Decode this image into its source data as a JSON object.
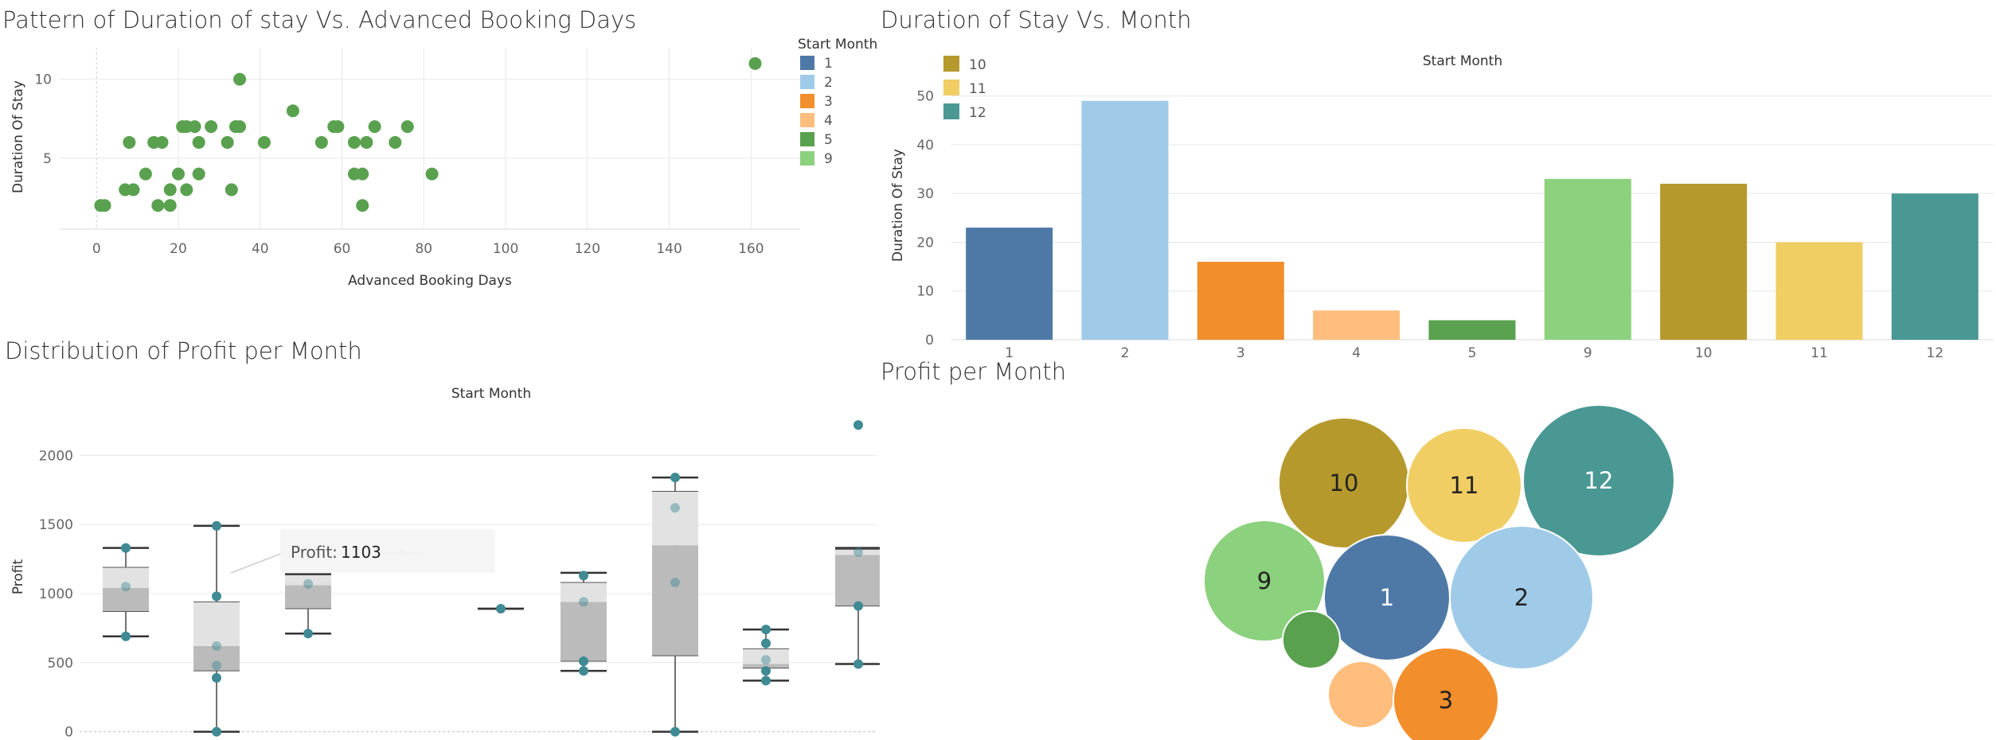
{
  "colors": {
    "1": "#4e79a7",
    "2": "#a0cbe8",
    "3": "#f28e2b",
    "4": "#ffbe7d",
    "5": "#59a14f",
    "9": "#8cd17d",
    "10": "#b6992d",
    "11": "#f1ce63",
    "12": "#499894",
    "scatter_point": "#59a14f",
    "box_point": "#3f8a93",
    "grid": "#e8e8e8"
  },
  "panels": {
    "scatter_title": "Pattern of Duration of stay Vs. Advanced Booking Days",
    "bar_title": "Duration of Stay Vs. Month",
    "box_title": "Distribution of Profit per Month",
    "bubble_title": "Profit per Month"
  },
  "legend": {
    "title": "Start Month",
    "items": [
      "1",
      "2",
      "3",
      "4",
      "5",
      "9"
    ]
  },
  "bar_legend": {
    "items": [
      "10",
      "11",
      "12"
    ]
  },
  "tooltip": {
    "label": "Profit:",
    "value": "1103"
  },
  "chart_data": [
    {
      "type": "scatter",
      "title": "Pattern of Duration of stay Vs. Advanced Booking Days",
      "xlabel": "Advanced Booking Days",
      "ylabel": "Duration Of Stay",
      "xlim": [
        -9,
        172
      ],
      "ylim": [
        0.5,
        12
      ],
      "xticks": [
        0,
        20,
        40,
        60,
        80,
        100,
        120,
        140,
        160
      ],
      "yticks": [
        5,
        10
      ],
      "points": [
        [
          1,
          2
        ],
        [
          2,
          2
        ],
        [
          7,
          3
        ],
        [
          8,
          6
        ],
        [
          9,
          3
        ],
        [
          12,
          4
        ],
        [
          14,
          6
        ],
        [
          15,
          2
        ],
        [
          16,
          6
        ],
        [
          18,
          3
        ],
        [
          18,
          2
        ],
        [
          20,
          4
        ],
        [
          21,
          7
        ],
        [
          22,
          7
        ],
        [
          22,
          3
        ],
        [
          24,
          7
        ],
        [
          25,
          6
        ],
        [
          25,
          4
        ],
        [
          28,
          7
        ],
        [
          32,
          6
        ],
        [
          33,
          3
        ],
        [
          34,
          7
        ],
        [
          35,
          7
        ],
        [
          35,
          10
        ],
        [
          41,
          6
        ],
        [
          48,
          8
        ],
        [
          55,
          6
        ],
        [
          58,
          7
        ],
        [
          59,
          7
        ],
        [
          63,
          4
        ],
        [
          63,
          6
        ],
        [
          65,
          4
        ],
        [
          65,
          2
        ],
        [
          66,
          6
        ],
        [
          68,
          7
        ],
        [
          73,
          6
        ],
        [
          76,
          7
        ],
        [
          82,
          4
        ],
        [
          161,
          11
        ]
      ]
    },
    {
      "type": "bar",
      "title": "Duration of Stay Vs. Month",
      "header": "Start Month",
      "ylabel": "Duration Of Stay",
      "ylim": [
        0,
        55
      ],
      "yticks": [
        0,
        10,
        20,
        30,
        40,
        50
      ],
      "categories": [
        "1",
        "2",
        "3",
        "4",
        "5",
        "9",
        "10",
        "11",
        "12"
      ],
      "values": [
        23,
        49,
        16,
        6,
        4,
        33,
        32,
        20,
        30
      ]
    },
    {
      "type": "box",
      "title": "Distribution of Profit per Month",
      "header": "Start Month",
      "ylabel": "Profit",
      "ylim": [
        -60,
        2330
      ],
      "yticks": [
        0,
        500,
        1000,
        1500,
        2000
      ],
      "boxes": [
        {
          "lo": 690,
          "q1": 870,
          "med": 1040,
          "q3": 1190,
          "hi": 1330,
          "points": [
            690,
            1050,
            1330
          ]
        },
        {
          "lo": 0,
          "q1": 440,
          "med": 620,
          "q3": 940,
          "hi": 1490,
          "points": [
            0,
            390,
            480,
            620,
            980,
            1490
          ]
        },
        {
          "lo": 710,
          "q1": 890,
          "med": 1060,
          "q3": 1140,
          "hi": 1140,
          "points": [
            710,
            1070
          ]
        },
        {
          "lo": 890,
          "q1": 890,
          "med": 890,
          "q3": 890,
          "hi": 890,
          "points": [
            890
          ]
        },
        {
          "lo": 440,
          "q1": 510,
          "med": 940,
          "q3": 1080,
          "hi": 1150,
          "points": [
            440,
            510,
            940,
            1130
          ]
        },
        {
          "lo": 0,
          "q1": 550,
          "med": 1350,
          "q3": 1740,
          "hi": 1840,
          "points": [
            0,
            1080,
            1620,
            1840
          ]
        },
        {
          "lo": 370,
          "q1": 460,
          "med": 490,
          "q3": 600,
          "hi": 740,
          "points": [
            370,
            440,
            520,
            640,
            740
          ]
        },
        {
          "lo": 490,
          "q1": 910,
          "med": 1280,
          "q3": 1320,
          "hi": 1330,
          "points": [
            490,
            910,
            1300,
            2220
          ]
        }
      ]
    },
    {
      "type": "bubble",
      "title": "Profit per Month",
      "labels": [
        "10",
        "11",
        "12",
        "9",
        "1",
        "2",
        "5",
        "4",
        "3"
      ],
      "label_shown": [
        true,
        true,
        true,
        true,
        true,
        true,
        false,
        false,
        true
      ],
      "sizes": [
        82,
        72,
        95,
        76,
        79,
        90,
        36,
        42,
        66
      ]
    }
  ]
}
